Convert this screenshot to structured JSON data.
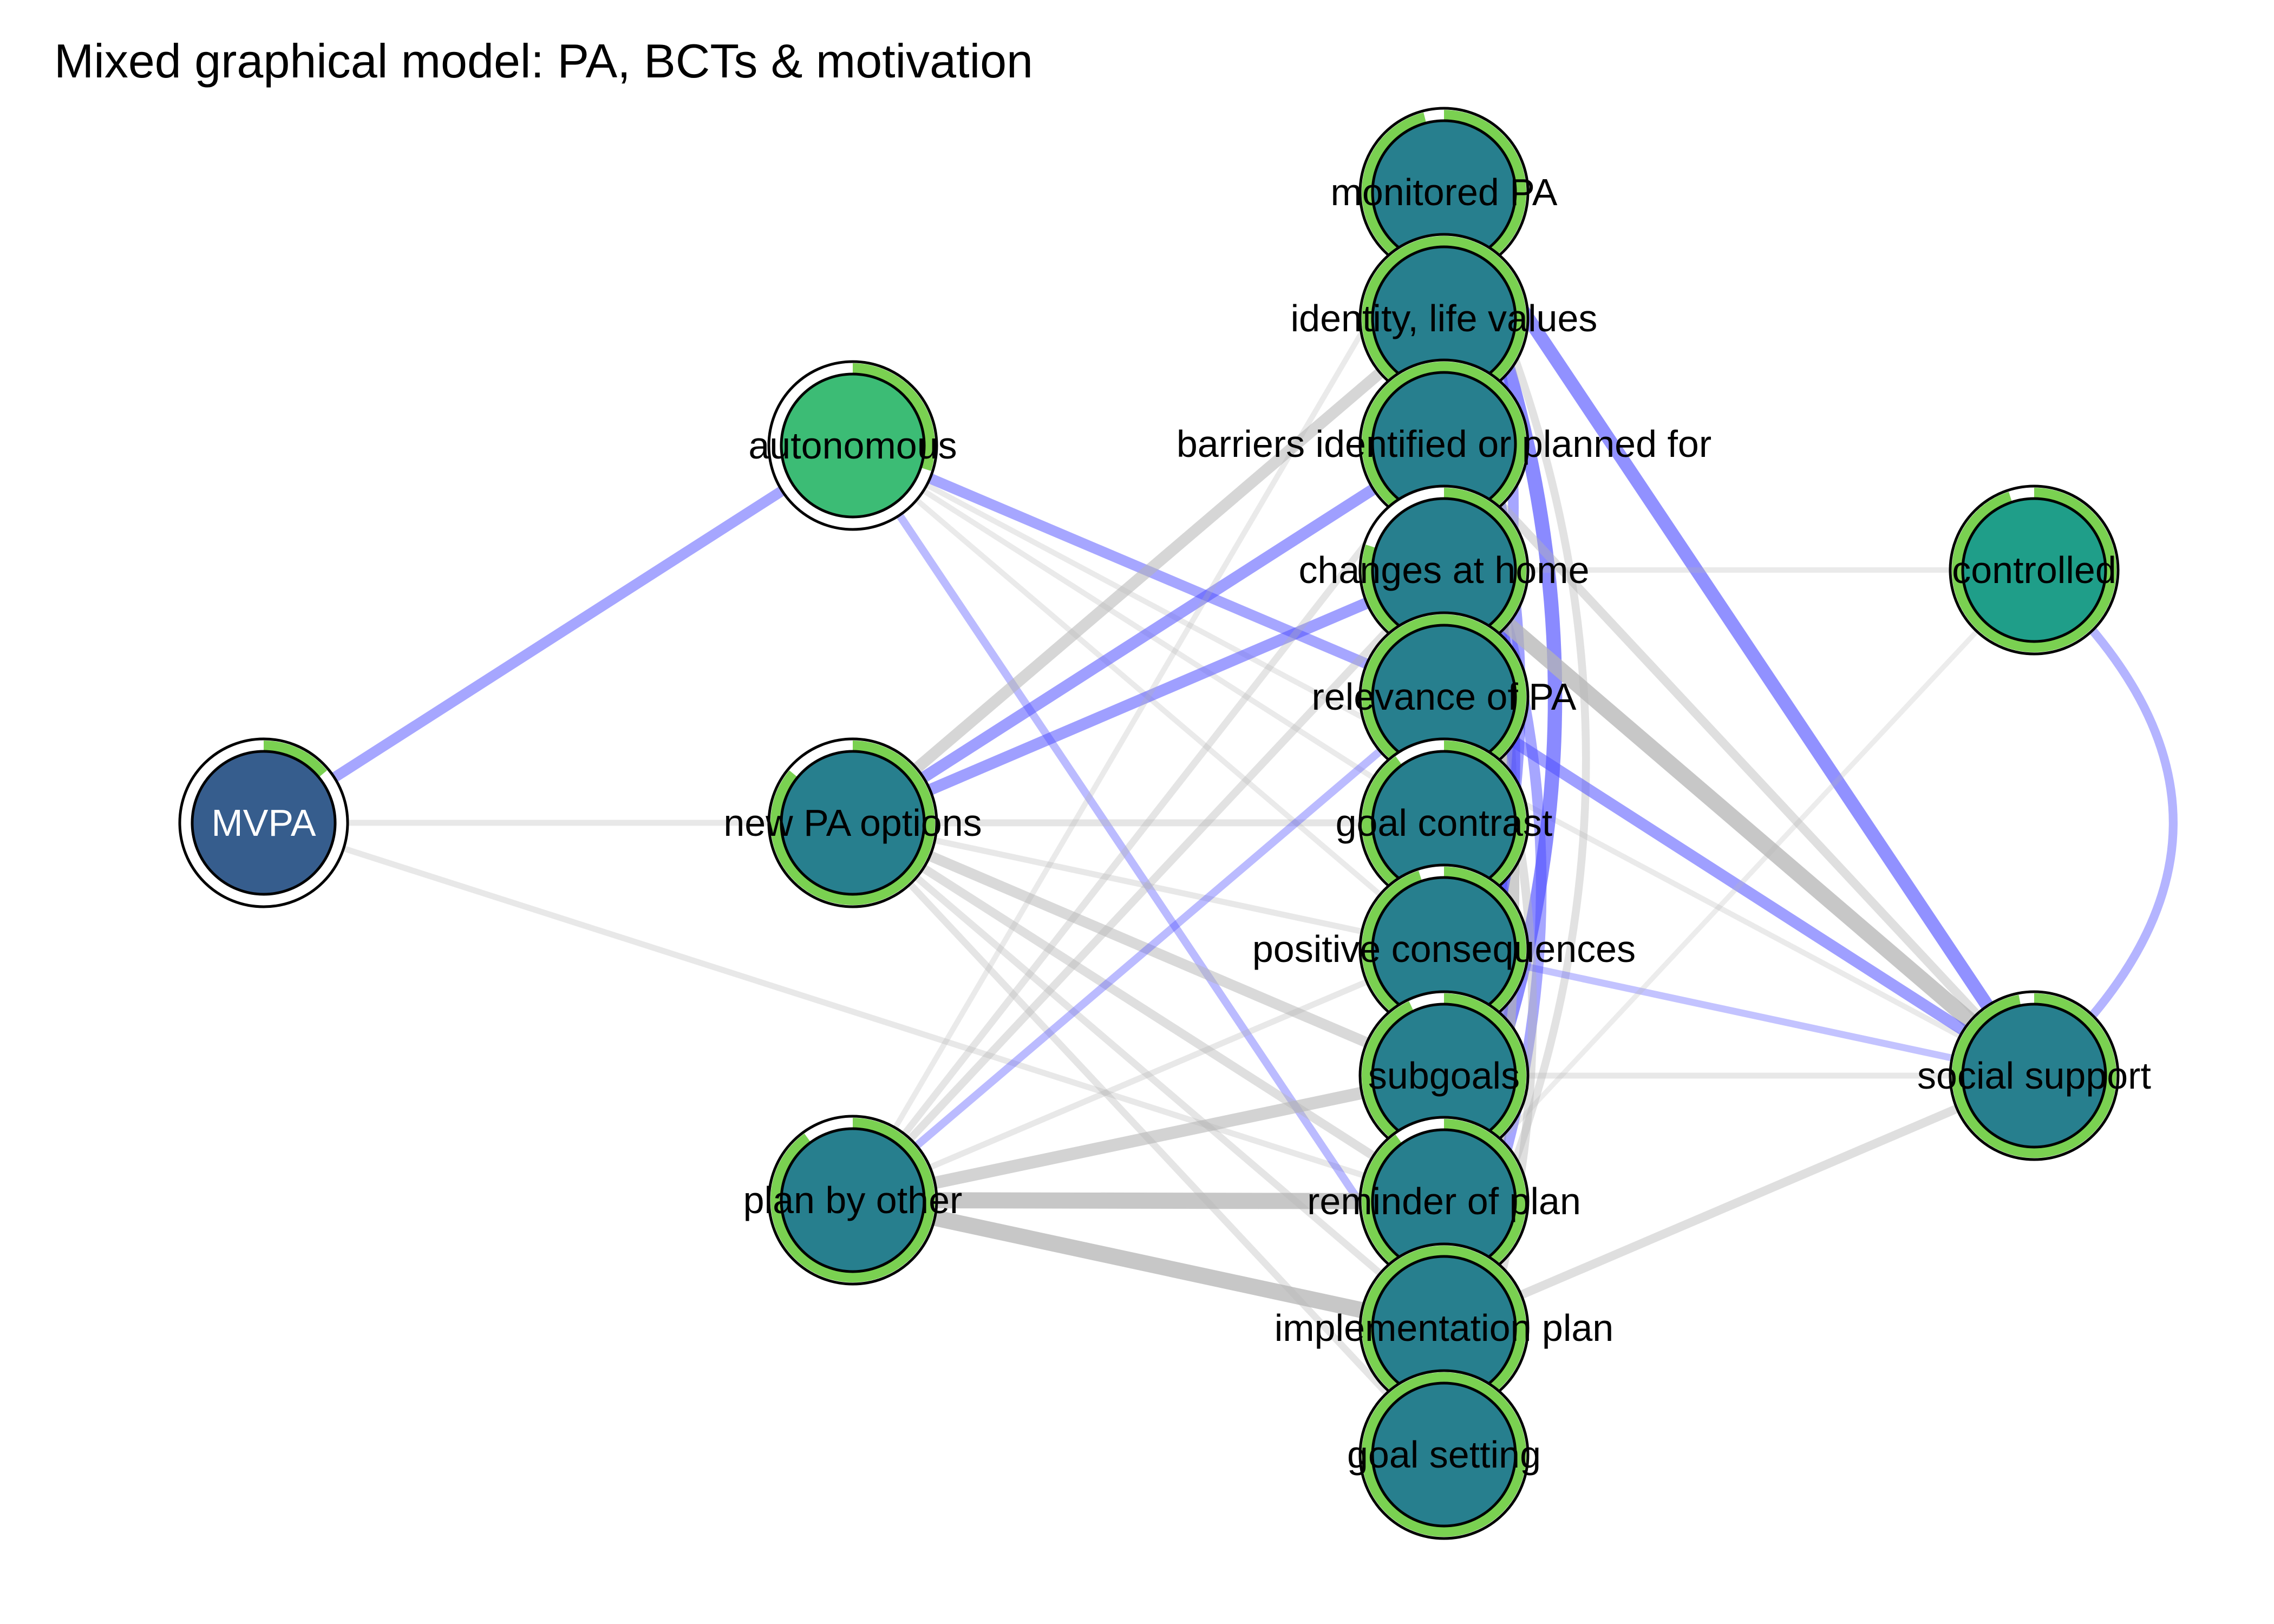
{
  "title": "Mixed graphical model: PA, BCTs & motivation",
  "colors": {
    "positive_edge": "#5050ff",
    "neutral_edge": "#b4b4b4",
    "ring": "#7ad151",
    "node_default": "#277f8e",
    "node_mvpa": "#365d8d",
    "node_autonomous": "#3cbc75",
    "node_controlled": "#1f9e89"
  },
  "nodes": [
    {
      "id": "mvpa",
      "label": "MVPA",
      "fill": "#365d8d",
      "pie": 0.14,
      "text_color": "#ffffff"
    },
    {
      "id": "autonomous",
      "label": "autonomous",
      "fill": "#3cbc75",
      "pie": 0.3,
      "text_color": "#000000"
    },
    {
      "id": "new_pa",
      "label": "new PA options",
      "fill": "#277f8e",
      "pie": 0.86,
      "text_color": "#000000"
    },
    {
      "id": "plan_other",
      "label": "plan by other",
      "fill": "#277f8e",
      "pie": 0.9,
      "text_color": "#000000"
    },
    {
      "id": "monitored",
      "label": "monitored PA",
      "fill": "#277f8e",
      "pie": 0.96,
      "text_color": "#000000"
    },
    {
      "id": "identity",
      "label": "identity, life values",
      "fill": "#277f8e",
      "pie": 1.0,
      "text_color": "#000000"
    },
    {
      "id": "barriers",
      "label": "barriers identified or planned for",
      "fill": "#277f8e",
      "pie": 1.0,
      "text_color": "#000000"
    },
    {
      "id": "changes",
      "label": "changes at home",
      "fill": "#277f8e",
      "pie": 0.8,
      "text_color": "#000000"
    },
    {
      "id": "relevance",
      "label": "relevance of PA",
      "fill": "#277f8e",
      "pie": 1.0,
      "text_color": "#000000"
    },
    {
      "id": "goal_contrast",
      "label": "goal contrast",
      "fill": "#277f8e",
      "pie": 0.9,
      "text_color": "#000000"
    },
    {
      "id": "positive",
      "label": "positive consequences",
      "fill": "#277f8e",
      "pie": 0.95,
      "text_color": "#000000"
    },
    {
      "id": "subgoals",
      "label": "subgoals",
      "fill": "#277f8e",
      "pie": 0.93,
      "text_color": "#000000"
    },
    {
      "id": "reminder",
      "label": "reminder of plan",
      "fill": "#277f8e",
      "pie": 0.9,
      "text_color": "#000000"
    },
    {
      "id": "implementation",
      "label": "implementation plan",
      "fill": "#277f8e",
      "pie": 1.0,
      "text_color": "#000000"
    },
    {
      "id": "goal_setting",
      "label": "goal setting",
      "fill": "#277f8e",
      "pie": 1.0,
      "text_color": "#000000"
    },
    {
      "id": "controlled",
      "label": "controlled",
      "fill": "#1f9e89",
      "pie": 0.95,
      "text_color": "#000000"
    },
    {
      "id": "social",
      "label": "social support",
      "fill": "#277f8e",
      "pie": 0.97,
      "text_color": "#000000"
    }
  ],
  "edges": [
    {
      "from": "mvpa",
      "to": "autonomous",
      "weight": 0.4,
      "sign": "positive"
    },
    {
      "from": "mvpa",
      "to": "new_pa",
      "weight": 0.15,
      "sign": "neutral"
    },
    {
      "from": "mvpa",
      "to": "reminder",
      "weight": 0.15,
      "sign": "neutral"
    },
    {
      "from": "autonomous",
      "to": "relevance",
      "weight": 0.4,
      "sign": "positive"
    },
    {
      "from": "autonomous",
      "to": "implementation",
      "weight": 0.25,
      "sign": "positive"
    },
    {
      "from": "autonomous",
      "to": "social",
      "weight": 0.12,
      "sign": "neutral"
    },
    {
      "from": "autonomous",
      "to": "goal_contrast",
      "weight": 0.12,
      "sign": "neutral"
    },
    {
      "from": "autonomous",
      "to": "positive",
      "weight": 0.12,
      "sign": "neutral"
    },
    {
      "from": "new_pa",
      "to": "barriers",
      "weight": 0.45,
      "sign": "positive"
    },
    {
      "from": "new_pa",
      "to": "changes",
      "weight": 0.45,
      "sign": "positive"
    },
    {
      "from": "new_pa",
      "to": "identity",
      "weight": 0.45,
      "sign": "neutral"
    },
    {
      "from": "new_pa",
      "to": "goal_contrast",
      "weight": 0.2,
      "sign": "neutral"
    },
    {
      "from": "new_pa",
      "to": "subgoals",
      "weight": 0.4,
      "sign": "neutral"
    },
    {
      "from": "new_pa",
      "to": "reminder",
      "weight": 0.3,
      "sign": "neutral"
    },
    {
      "from": "new_pa",
      "to": "implementation",
      "weight": 0.2,
      "sign": "neutral"
    },
    {
      "from": "new_pa",
      "to": "goal_setting",
      "weight": 0.2,
      "sign": "neutral"
    },
    {
      "from": "new_pa",
      "to": "positive",
      "weight": 0.15,
      "sign": "neutral"
    },
    {
      "from": "plan_other",
      "to": "reminder",
      "weight": 0.7,
      "sign": "neutral"
    },
    {
      "from": "plan_other",
      "to": "implementation",
      "weight": 0.7,
      "sign": "neutral"
    },
    {
      "from": "plan_other",
      "to": "subgoals",
      "weight": 0.5,
      "sign": "neutral"
    },
    {
      "from": "plan_other",
      "to": "changes",
      "weight": 0.25,
      "sign": "neutral"
    },
    {
      "from": "plan_other",
      "to": "relevance",
      "weight": 0.25,
      "sign": "positive"
    },
    {
      "from": "plan_other",
      "to": "barriers",
      "weight": 0.2,
      "sign": "neutral"
    },
    {
      "from": "plan_other",
      "to": "positive",
      "weight": 0.15,
      "sign": "neutral"
    },
    {
      "from": "plan_other",
      "to": "monitored",
      "weight": 0.12,
      "sign": "neutral"
    },
    {
      "from": "monitored",
      "to": "reminder",
      "weight": 0.6,
      "sign": "positive"
    },
    {
      "from": "monitored",
      "to": "social",
      "weight": 0.55,
      "sign": "positive"
    },
    {
      "from": "monitored",
      "to": "goal_contrast",
      "weight": 0.4,
      "sign": "positive"
    },
    {
      "from": "monitored",
      "to": "implementation",
      "weight": 0.25,
      "sign": "neutral"
    },
    {
      "from": "identity",
      "to": "goal_setting",
      "weight": 0.6,
      "sign": "neutral"
    },
    {
      "from": "identity",
      "to": "subgoals",
      "weight": 0.45,
      "sign": "positive"
    },
    {
      "from": "barriers",
      "to": "subgoals",
      "weight": 0.55,
      "sign": "positive"
    },
    {
      "from": "barriers",
      "to": "implementation",
      "weight": 0.4,
      "sign": "positive"
    },
    {
      "from": "barriers",
      "to": "social",
      "weight": 0.3,
      "sign": "neutral"
    },
    {
      "from": "changes",
      "to": "social",
      "weight": 0.7,
      "sign": "neutral"
    },
    {
      "from": "changes",
      "to": "goal_setting",
      "weight": 0.3,
      "sign": "neutral"
    },
    {
      "from": "changes",
      "to": "controlled",
      "weight": 0.12,
      "sign": "neutral"
    },
    {
      "from": "relevance",
      "to": "goal_contrast",
      "weight": 1.0,
      "sign": "positive"
    },
    {
      "from": "relevance",
      "to": "social",
      "weight": 0.45,
      "sign": "positive"
    },
    {
      "from": "relevance",
      "to": "reminder",
      "weight": 0.3,
      "sign": "positive"
    },
    {
      "from": "goal_contrast",
      "to": "goal_setting",
      "weight": 0.6,
      "sign": "neutral"
    },
    {
      "from": "positive",
      "to": "social",
      "weight": 0.2,
      "sign": "positive"
    },
    {
      "from": "positive",
      "to": "reminder",
      "weight": 0.25,
      "sign": "neutral"
    },
    {
      "from": "subgoals",
      "to": "social",
      "weight": 0.15,
      "sign": "neutral"
    },
    {
      "from": "implementation",
      "to": "social",
      "weight": 0.3,
      "sign": "neutral"
    },
    {
      "from": "implementation",
      "to": "goal_setting",
      "weight": 0.5,
      "sign": "neutral"
    },
    {
      "from": "controlled",
      "to": "social",
      "weight": 0.3,
      "sign": "positive"
    },
    {
      "from": "controlled",
      "to": "reminder",
      "weight": 0.1,
      "sign": "neutral"
    }
  ]
}
